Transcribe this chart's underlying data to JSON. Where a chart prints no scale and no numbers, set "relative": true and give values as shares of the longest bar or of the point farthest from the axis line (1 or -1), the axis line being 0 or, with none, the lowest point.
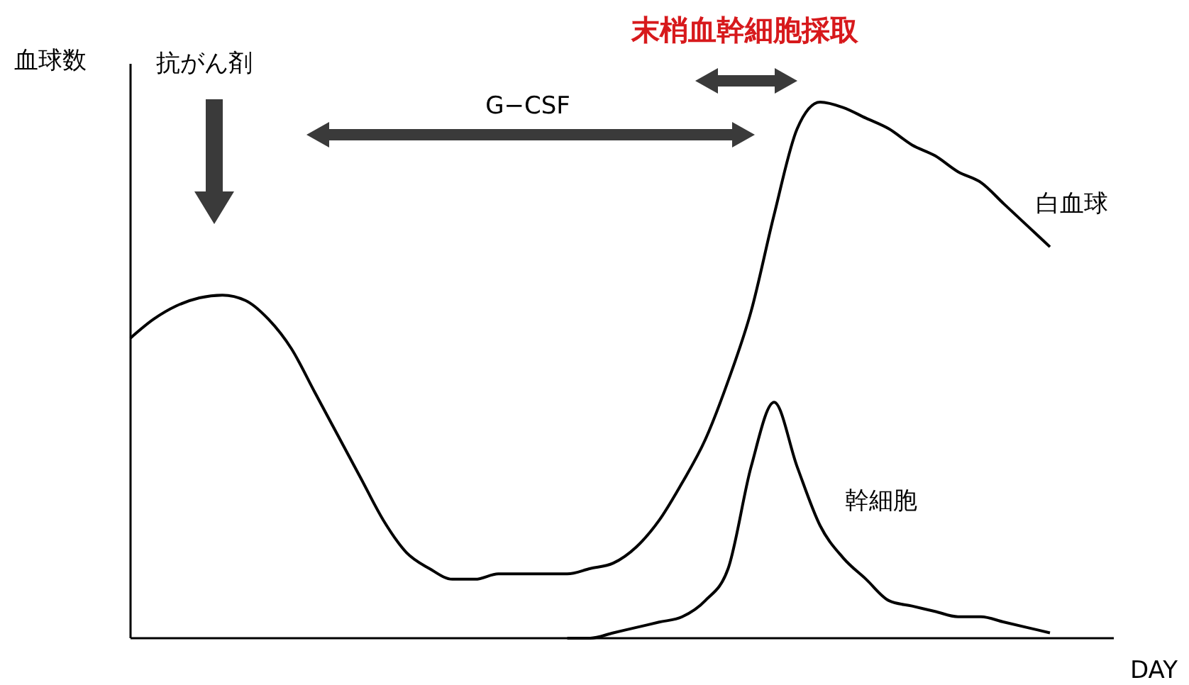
{
  "chart_data": {
    "type": "line",
    "relative": true,
    "ylabel": "血球数",
    "xlabel": "DAY",
    "categories": [
      null,
      null,
      null,
      null,
      null,
      null,
      null,
      null,
      null,
      null,
      null,
      null,
      null,
      null,
      null,
      null,
      null,
      null,
      null,
      null,
      null,
      null,
      null,
      null,
      null,
      null,
      null,
      null,
      null,
      null,
      null,
      null,
      null,
      null,
      null,
      null,
      null,
      null,
      null,
      null,
      null
    ],
    "series": [
      {
        "name": "白血球",
        "color": "#000000",
        "values": [
          0.56,
          0.595,
          0.62,
          0.635,
          0.64,
          0.63,
          0.595,
          0.54,
          0.46,
          0.38,
          0.3,
          0.22,
          0.16,
          0.13,
          0.11,
          0.11,
          0.12,
          0.12,
          0.12,
          0.12,
          0.13,
          0.14,
          0.17,
          0.22,
          0.29,
          0.37,
          0.48,
          0.61,
          0.79,
          0.95,
          1,
          0.99,
          0.97,
          0.95,
          0.92,
          0.9,
          0.87,
          0.85,
          0.81,
          0.77,
          0.73
        ]
      },
      {
        "name": "幹細胞",
        "color": "#000000",
        "values": [
          null,
          null,
          null,
          null,
          null,
          null,
          null,
          null,
          null,
          null,
          null,
          null,
          null,
          null,
          null,
          null,
          null,
          null,
          null,
          0,
          0,
          0.01,
          0.02,
          0.03,
          0.04,
          0.07,
          0.13,
          0.32,
          0.44,
          0.32,
          0.21,
          0.15,
          0.11,
          0.07,
          0.06,
          0.05,
          0.04,
          0.04,
          0.03,
          0.02,
          0.01
        ]
      }
    ],
    "annotations": [
      "抗がん剤",
      "G−CSF",
      "末梢血幹細胞採取"
    ],
    "marker": "none",
    "line_style": "solid"
  }
}
